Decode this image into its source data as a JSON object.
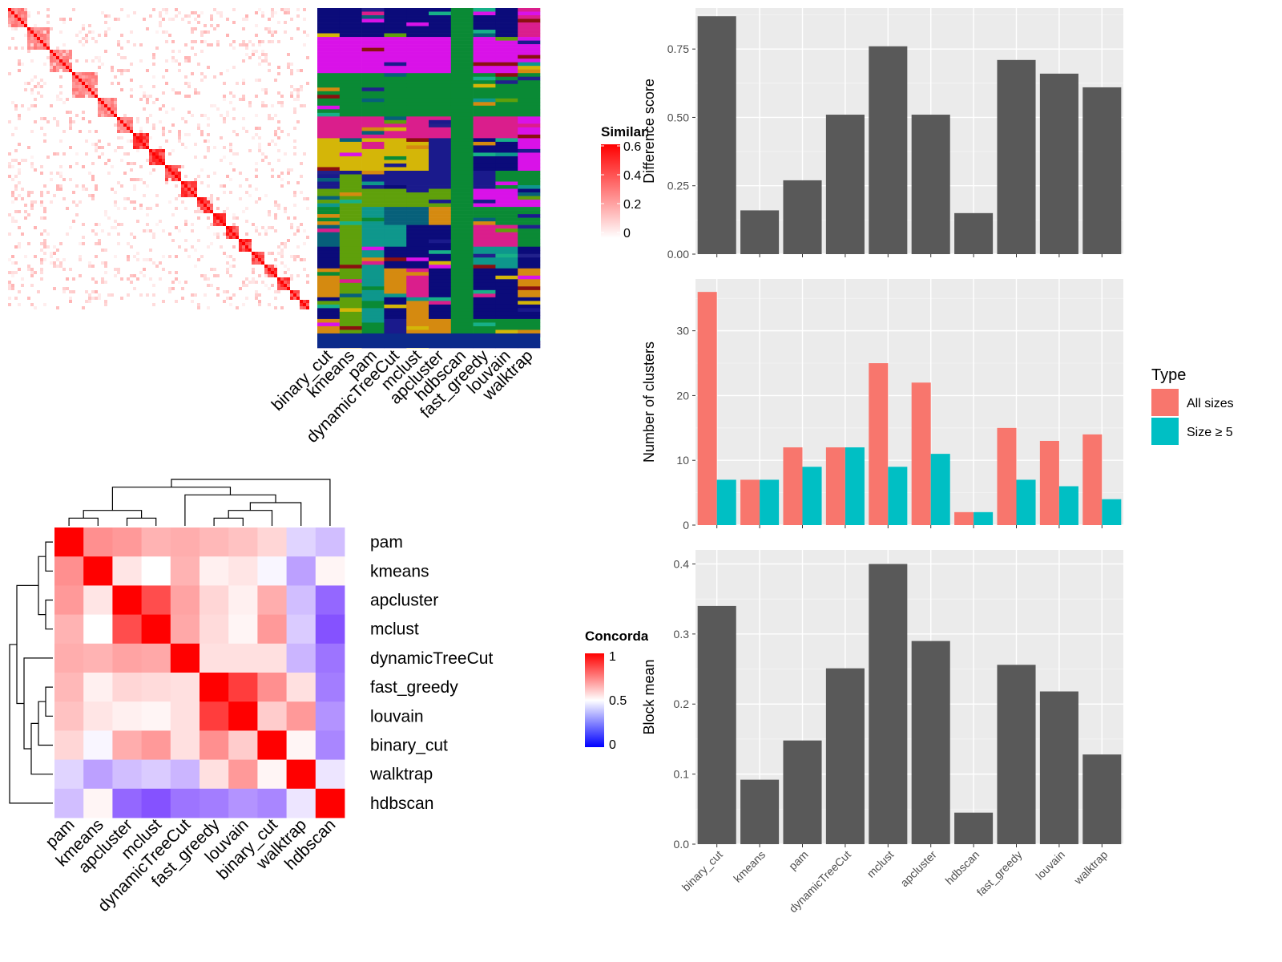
{
  "methods_order_top": [
    "binary_cut",
    "kmeans",
    "pam",
    "dynamicTreeCut",
    "mclust",
    "apcluster",
    "hdbscan",
    "fast_greedy",
    "louvain",
    "walktrap"
  ],
  "similarity_legend": {
    "title": "Similarity",
    "ticks": [
      "0.6",
      "0.4",
      "0.2",
      "0"
    ]
  },
  "concordance_legend": {
    "title": "Concordance",
    "ticks": [
      "1",
      "0.5",
      "0"
    ]
  },
  "colors": {
    "bar": "#595959",
    "all_sizes": "#F8766D",
    "size_ge5": "#00BFC4",
    "panel_bg": "#EBEBEB",
    "grid": "#FFFFFF"
  },
  "chart_data": [
    {
      "type": "heatmap",
      "name": "similarity-matrix",
      "value_range": [
        0,
        0.6
      ],
      "colorscale": [
        "#FFFFFF",
        "#FF0000"
      ]
    },
    {
      "type": "heatmap",
      "name": "cluster-assignments",
      "columns": [
        "binary_cut",
        "kmeans",
        "pam",
        "dynamicTreeCut",
        "mclust",
        "apcluster",
        "hdbscan",
        "fast_greedy",
        "louvain",
        "walktrap"
      ]
    },
    {
      "type": "heatmap",
      "name": "concordance",
      "rows": [
        "pam",
        "kmeans",
        "apcluster",
        "mclust",
        "dynamicTreeCut",
        "fast_greedy",
        "louvain",
        "binary_cut",
        "walktrap",
        "hdbscan"
      ],
      "columns": [
        "pam",
        "kmeans",
        "apcluster",
        "mclust",
        "dynamicTreeCut",
        "fast_greedy",
        "louvain",
        "binary_cut",
        "walktrap",
        "hdbscan"
      ],
      "values": [
        [
          1.0,
          0.72,
          0.7,
          0.65,
          0.66,
          0.64,
          0.62,
          0.58,
          0.4,
          0.35
        ],
        [
          0.72,
          1.0,
          0.55,
          0.5,
          0.65,
          0.53,
          0.55,
          0.48,
          0.28,
          0.52
        ],
        [
          0.7,
          0.55,
          1.0,
          0.85,
          0.68,
          0.58,
          0.53,
          0.66,
          0.35,
          0.15
        ],
        [
          0.65,
          0.5,
          0.85,
          1.0,
          0.67,
          0.57,
          0.52,
          0.7,
          0.38,
          0.1
        ],
        [
          0.66,
          0.65,
          0.68,
          0.67,
          1.0,
          0.56,
          0.56,
          0.56,
          0.33,
          0.18
        ],
        [
          0.64,
          0.53,
          0.58,
          0.57,
          0.56,
          1.0,
          0.88,
          0.72,
          0.56,
          0.2
        ],
        [
          0.62,
          0.55,
          0.53,
          0.52,
          0.56,
          0.88,
          1.0,
          0.6,
          0.7,
          0.25
        ],
        [
          0.58,
          0.48,
          0.66,
          0.7,
          0.56,
          0.72,
          0.6,
          1.0,
          0.52,
          0.22
        ],
        [
          0.4,
          0.28,
          0.35,
          0.38,
          0.33,
          0.56,
          0.7,
          0.52,
          1.0,
          0.44
        ],
        [
          0.35,
          0.52,
          0.15,
          0.1,
          0.18,
          0.2,
          0.25,
          0.22,
          0.44,
          1.0
        ]
      ],
      "value_range": [
        0,
        1
      ]
    },
    {
      "type": "bar",
      "name": "difference-score",
      "categories": [
        "binary_cut",
        "kmeans",
        "pam",
        "dynamicTreeCut",
        "mclust",
        "apcluster",
        "hdbscan",
        "fast_greedy",
        "louvain",
        "walktrap"
      ],
      "values": [
        0.87,
        0.16,
        0.27,
        0.51,
        0.76,
        0.51,
        0.15,
        0.71,
        0.66,
        0.61
      ],
      "ylabel": "Difference score",
      "ylim": [
        0,
        0.9
      ],
      "yticks": [
        "0.00",
        "0.25",
        "0.50",
        "0.75"
      ],
      "grid": true
    },
    {
      "type": "bar",
      "name": "number-of-clusters",
      "categories": [
        "binary_cut",
        "kmeans",
        "pam",
        "dynamicTreeCut",
        "mclust",
        "apcluster",
        "hdbscan",
        "fast_greedy",
        "louvain",
        "walktrap"
      ],
      "series": [
        {
          "name": "All sizes",
          "values": [
            36,
            7,
            12,
            12,
            25,
            22,
            2,
            15,
            13,
            14
          ]
        },
        {
          "name": "Size ≥ 5",
          "values": [
            7,
            7,
            9,
            12,
            9,
            11,
            2,
            7,
            6,
            4
          ]
        }
      ],
      "ylabel": "Number of clusters",
      "ylim": [
        0,
        38
      ],
      "yticks": [
        "0",
        "10",
        "20",
        "30"
      ],
      "legend_title": "Type",
      "legend_position": "right",
      "grid": true
    },
    {
      "type": "bar",
      "name": "block-mean",
      "categories": [
        "binary_cut",
        "kmeans",
        "pam",
        "dynamicTreeCut",
        "mclust",
        "apcluster",
        "hdbscan",
        "fast_greedy",
        "louvain",
        "walktrap"
      ],
      "values": [
        0.34,
        0.092,
        0.148,
        0.251,
        0.4,
        0.29,
        0.045,
        0.256,
        0.218,
        0.128
      ],
      "ylabel": "Block mean",
      "ylim": [
        0,
        0.42
      ],
      "yticks": [
        "0.0",
        "0.1",
        "0.2",
        "0.3",
        "0.4"
      ],
      "grid": true
    }
  ]
}
